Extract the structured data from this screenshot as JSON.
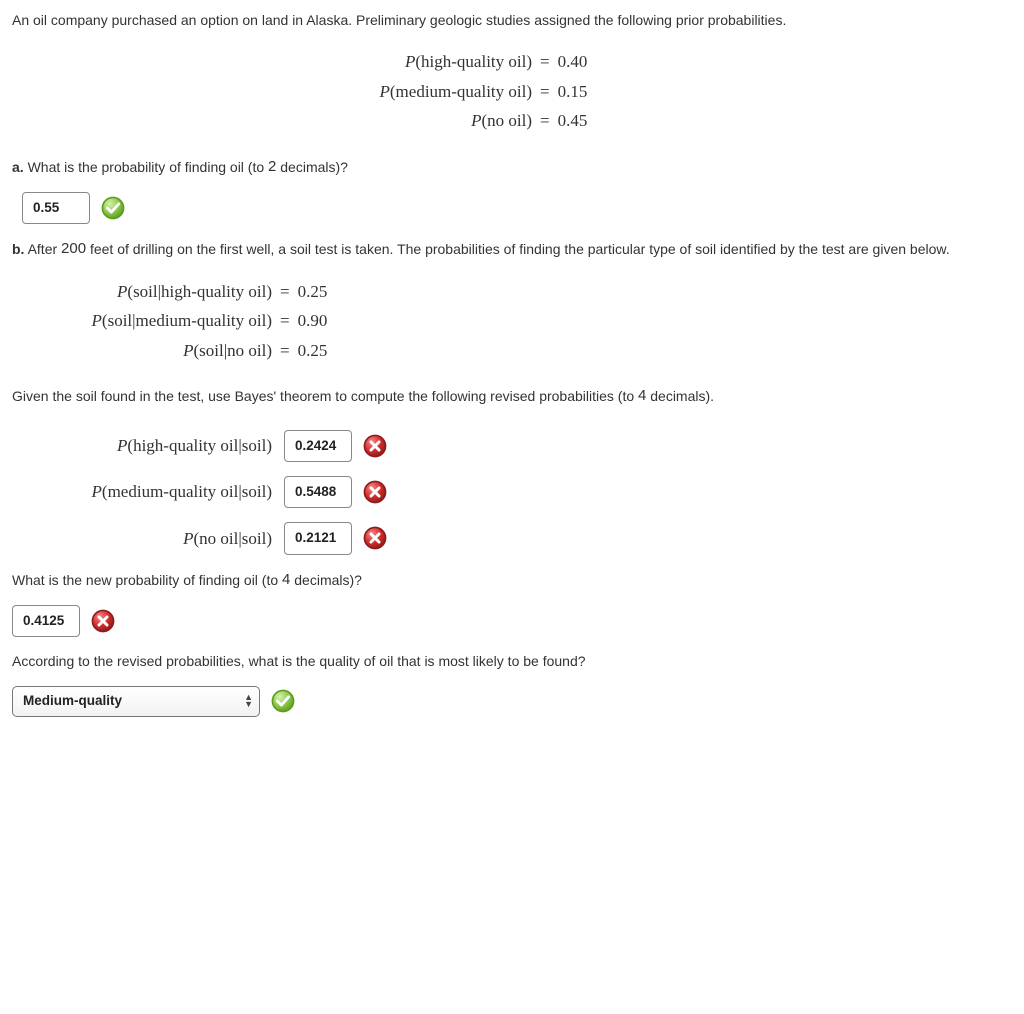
{
  "intro": "An oil company purchased an option on land in Alaska. Preliminary geologic studies assigned the following prior probabilities.",
  "priors": [
    {
      "label": "P(high-quality oil)",
      "label_inner": "high-quality oil",
      "value": "0.40"
    },
    {
      "label": "P(medium-quality oil)",
      "label_inner": "medium-quality oil",
      "value": "0.15"
    },
    {
      "label": "P(no oil)",
      "label_inner": "no oil",
      "value": "0.45"
    }
  ],
  "part_a": {
    "letter": "a.",
    "prompt_before": " What is the probability of finding oil (to ",
    "decimals": "2",
    "prompt_after": " decimals)?",
    "answer": "0.55",
    "correct": true
  },
  "part_b": {
    "letter": "b.",
    "prompt_before": " After ",
    "feet": "200",
    "prompt_after": " feet of drilling on the first well, a soil test is taken. The probabilities of finding the particular type of soil identified by the test are given below."
  },
  "conditionals": [
    {
      "label_inner": "soil|high-quality oil",
      "value": "0.25"
    },
    {
      "label_inner": "soil|medium-quality oil",
      "value": "0.90"
    },
    {
      "label_inner": "soil|no oil",
      "value": "0.25"
    }
  ],
  "bayes_prompt_before": "Given the soil found in the test, use Bayes' theorem to compute the following revised probabilities (to ",
  "bayes_decimals": "4",
  "bayes_prompt_after": " decimals).",
  "posteriors": [
    {
      "label_inner": "high-quality oil|soil",
      "answer": "0.2424",
      "correct": false
    },
    {
      "label_inner": "medium-quality oil|soil",
      "answer": "0.5488",
      "correct": false
    },
    {
      "label_inner": "no oil|soil",
      "answer": "0.2121",
      "correct": false
    }
  ],
  "new_prob_prompt_before": "What is the new probability of finding oil (to ",
  "new_prob_decimals": "4",
  "new_prob_prompt_after": " decimals)?",
  "new_prob_answer": {
    "value": "0.4125",
    "correct": false
  },
  "final_prompt": "According to the revised probabilities, what is the quality of oil that is most likely to be found?",
  "final_select": {
    "value": "Medium-quality",
    "correct": true
  },
  "colors": {
    "correct_fill": "#8bc34a",
    "correct_ring": "#5a9e1c",
    "wrong_fill": "#d22f2f",
    "wrong_ring": "#8e1b1b"
  }
}
